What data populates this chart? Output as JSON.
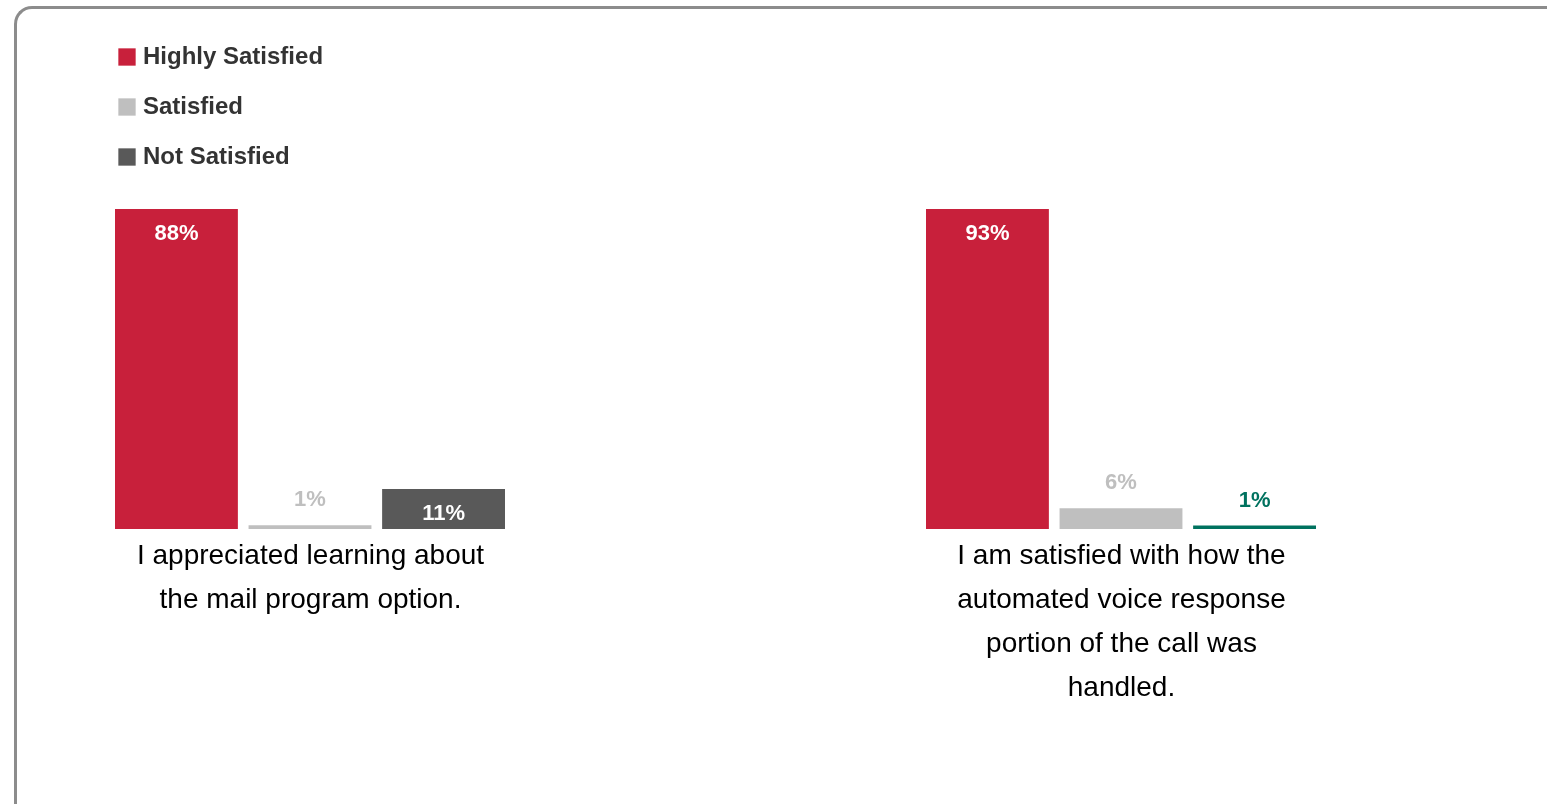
{
  "chart_data": [
    {
      "type": "bar",
      "categories": [
        null
      ],
      "xlabel": "I appreciated learning about the mail program option.",
      "legend": "top left",
      "data_labels": true,
      "series": [
        {
          "name": "Highly Satisfied",
          "color": "#c8203b",
          "values": [
            88
          ],
          "value_labels": [
            "88%"
          ]
        },
        {
          "name": "Satisfied",
          "color": "#bfbfbf",
          "values": [
            1
          ],
          "value_labels": [
            "1%"
          ]
        },
        {
          "name": "Not Satisfied",
          "color": "#595959",
          "values": [
            11
          ],
          "value_labels": [
            "11%"
          ]
        }
      ]
    },
    {
      "type": "bar",
      "categories": [
        null
      ],
      "xlabel": "I am satisfied with how the automated voice response portion of the call was handled.",
      "data_labels": true,
      "series": [
        {
          "color": "#c8203b",
          "values": [
            93
          ],
          "value_labels": [
            "93%"
          ]
        },
        {
          "color": "#bfbfbf",
          "values": [
            6
          ],
          "value_labels": [
            "6%"
          ]
        },
        {
          "color": "#00725f",
          "values": [
            1
          ],
          "value_labels": [
            "1%"
          ]
        }
      ]
    }
  ]
}
